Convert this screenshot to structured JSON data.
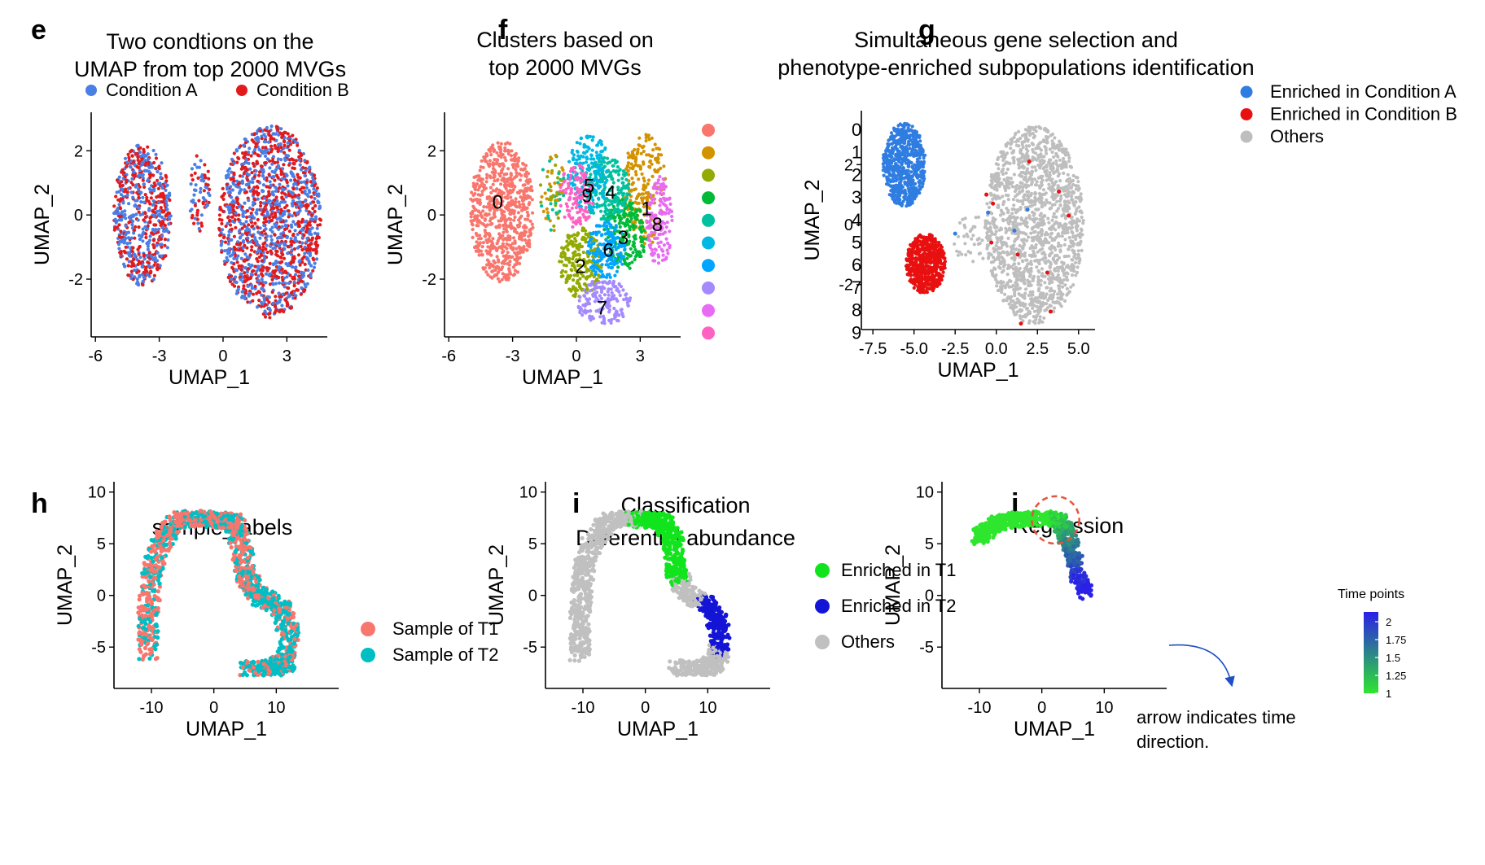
{
  "chart_data": [
    {
      "panel": "e",
      "type": "scatter",
      "title": [
        "Two condtions on the",
        "UMAP from top 2000 MVGs"
      ],
      "xlabel": "UMAP_1",
      "ylabel": "UMAP_2",
      "xlim": [
        -6.2,
        4.9
      ],
      "ylim": [
        -3.8,
        3.2
      ],
      "xticks": [
        -6,
        -3,
        0,
        3
      ],
      "xtick_labels": [
        "-6",
        "-3",
        "0",
        "3"
      ],
      "yticks": [
        -2,
        0,
        2
      ],
      "ytick_labels": [
        "-2",
        "0",
        "2"
      ],
      "legend": {
        "position": "top",
        "entries": [
          {
            "label": "Condition A",
            "color": "#4a7fe6"
          },
          {
            "label": "Condition B",
            "color": "#e31a1c"
          }
        ]
      },
      "clusters": [
        {
          "cx": -3.8,
          "cy": 0.0,
          "rx": 1.35,
          "ry": 2.2,
          "n": 650,
          "colors": [
            "#4a7fe6",
            "#e31a1c"
          ]
        },
        {
          "cx": 2.2,
          "cy": -0.2,
          "rx": 2.4,
          "ry": 3.0,
          "n": 1500,
          "colors": [
            "#4a7fe6",
            "#e31a1c"
          ]
        },
        {
          "cx": -1.1,
          "cy": 0.7,
          "rx": 0.5,
          "ry": 1.2,
          "n": 70,
          "colors": [
            "#4a7fe6",
            "#e31a1c"
          ]
        }
      ]
    },
    {
      "panel": "f",
      "type": "scatter",
      "title": [
        "Clusters based on",
        "top 2000 MVGs"
      ],
      "xlabel": "UMAP_1",
      "ylabel": "UMAP_2",
      "xlim": [
        -6.2,
        4.9
      ],
      "ylim": [
        -3.8,
        3.2
      ],
      "xticks": [
        -6,
        -3,
        0,
        3
      ],
      "xtick_labels": [
        "-6",
        "-3",
        "0",
        "3"
      ],
      "yticks": [
        -2,
        0,
        2
      ],
      "ytick_labels": [
        "-2",
        "0",
        "2"
      ],
      "legend": {
        "position": "right",
        "entries": [
          {
            "label": "0",
            "color": "#f8766d"
          },
          {
            "label": "1",
            "color": "#d39200"
          },
          {
            "label": "2",
            "color": "#93aa00"
          },
          {
            "label": "3",
            "color": "#00ba38"
          },
          {
            "label": "4",
            "color": "#00c19f"
          },
          {
            "label": "5",
            "color": "#00b9e3"
          },
          {
            "label": "6",
            "color": "#00a5ff"
          },
          {
            "label": "7",
            "color": "#a58aff"
          },
          {
            "label": "8",
            "color": "#e76bf3"
          },
          {
            "label": "9",
            "color": "#ff61c3"
          }
        ]
      },
      "annotations": [
        {
          "text": "0",
          "x": -3.7,
          "y": 0.4
        },
        {
          "text": "5",
          "x": 0.6,
          "y": 0.9
        },
        {
          "text": "9",
          "x": 0.5,
          "y": 0.6
        },
        {
          "text": "4",
          "x": 1.6,
          "y": 0.7
        },
        {
          "text": "1",
          "x": 3.3,
          "y": 0.2
        },
        {
          "text": "8",
          "x": 3.8,
          "y": -0.3
        },
        {
          "text": "3",
          "x": 2.2,
          "y": -0.7
        },
        {
          "text": "6",
          "x": 1.5,
          "y": -1.1
        },
        {
          "text": "2",
          "x": 0.2,
          "y": -1.6
        },
        {
          "text": "7",
          "x": 1.2,
          "y": -2.9
        }
      ],
      "clusters": [
        {
          "cx": -3.5,
          "cy": 0.1,
          "rx": 1.5,
          "ry": 2.2,
          "n": 700,
          "colors": [
            "#f8766d"
          ]
        },
        {
          "cx": 3.2,
          "cy": 0.8,
          "rx": 1.0,
          "ry": 1.8,
          "n": 220,
          "colors": [
            "#d39200"
          ]
        },
        {
          "cx": 0.2,
          "cy": -1.5,
          "rx": 1.0,
          "ry": 1.1,
          "n": 220,
          "colors": [
            "#93aa00"
          ]
        },
        {
          "cx": 2.3,
          "cy": -0.6,
          "rx": 1.0,
          "ry": 1.1,
          "n": 200,
          "colors": [
            "#00ba38"
          ]
        },
        {
          "cx": 1.4,
          "cy": 0.8,
          "rx": 1.1,
          "ry": 1.0,
          "n": 200,
          "colors": [
            "#00c19f"
          ]
        },
        {
          "cx": 0.6,
          "cy": 1.3,
          "rx": 1.0,
          "ry": 1.2,
          "n": 180,
          "colors": [
            "#00b9e3"
          ]
        },
        {
          "cx": 1.4,
          "cy": -1.1,
          "rx": 0.9,
          "ry": 0.9,
          "n": 160,
          "colors": [
            "#00a5ff"
          ]
        },
        {
          "cx": 1.3,
          "cy": -2.7,
          "rx": 1.3,
          "ry": 0.7,
          "n": 160,
          "colors": [
            "#a58aff"
          ]
        },
        {
          "cx": 3.9,
          "cy": -0.2,
          "rx": 0.6,
          "ry": 1.4,
          "n": 140,
          "colors": [
            "#e76bf3"
          ]
        },
        {
          "cx": 0.0,
          "cy": 0.6,
          "rx": 0.8,
          "ry": 1.0,
          "n": 120,
          "colors": [
            "#ff61c3"
          ]
        },
        {
          "cx": -1.1,
          "cy": 0.7,
          "rx": 0.6,
          "ry": 1.2,
          "n": 70,
          "colors": [
            "#d39200",
            "#93aa00",
            "#00c19f"
          ]
        }
      ]
    },
    {
      "panel": "g",
      "type": "scatter",
      "title": [
        "Simultaneous gene selection and",
        "phenotype-enriched subpopulations identification"
      ],
      "xlabel": "UMAP_1",
      "ylabel": "UMAP_2",
      "xlim": [
        -8.2,
        6.0
      ],
      "ylim": [
        -3.5,
        3.8
      ],
      "xticks": [
        -7.5,
        -5.0,
        -2.5,
        0.0,
        2.5,
        5.0
      ],
      "xtick_labels": [
        "-7.5",
        "-5.0",
        "-2.5",
        "0.0",
        "2.5",
        "5.0"
      ],
      "yticks": [
        -2,
        0,
        2
      ],
      "ytick_labels": [
        "-2",
        "0",
        "2"
      ],
      "legend": {
        "position": "top-right",
        "entries": [
          {
            "label": "Enriched in Condition A",
            "color": "#2f7de1"
          },
          {
            "label": "Enriched in Condition B",
            "color": "#e81010"
          },
          {
            "label": "Others",
            "color": "#bebebe"
          }
        ]
      },
      "clusters": [
        {
          "cx": -5.6,
          "cy": 2.0,
          "rx": 1.3,
          "ry": 1.4,
          "n": 650,
          "colors": [
            "#2f7de1"
          ]
        },
        {
          "cx": -4.3,
          "cy": -1.3,
          "rx": 1.2,
          "ry": 1.0,
          "n": 550,
          "colors": [
            "#e81010"
          ]
        },
        {
          "cx": 2.3,
          "cy": 0.0,
          "rx": 3.0,
          "ry": 3.3,
          "n": 1500,
          "colors": [
            "#bebebe"
          ]
        },
        {
          "cx": -1.5,
          "cy": -0.5,
          "rx": 1.2,
          "ry": 0.8,
          "n": 40,
          "colors": [
            "#bebebe"
          ]
        }
      ],
      "highlight_points": [
        {
          "x": 2.0,
          "y": 2.1,
          "color": "#e81010"
        },
        {
          "x": 3.8,
          "y": 1.1,
          "color": "#e81010"
        },
        {
          "x": 4.4,
          "y": 0.3,
          "color": "#e81010"
        },
        {
          "x": 1.3,
          "y": -1.0,
          "color": "#e81010"
        },
        {
          "x": 3.1,
          "y": -1.6,
          "color": "#e81010"
        },
        {
          "x": 3.3,
          "y": -2.9,
          "color": "#e81010"
        },
        {
          "x": -0.3,
          "y": -0.6,
          "color": "#e81010"
        },
        {
          "x": -0.2,
          "y": 0.7,
          "color": "#e81010"
        },
        {
          "x": 1.5,
          "y": -3.3,
          "color": "#e81010"
        },
        {
          "x": -0.6,
          "y": 1.0,
          "color": "#e81010"
        },
        {
          "x": 1.9,
          "y": 0.5,
          "color": "#2f7de1"
        },
        {
          "x": 1.1,
          "y": -0.2,
          "color": "#2f7de1"
        },
        {
          "x": -0.5,
          "y": 0.4,
          "color": "#2f7de1"
        },
        {
          "x": -2.5,
          "y": -0.3,
          "color": "#2f7de1"
        }
      ]
    },
    {
      "panel": "h",
      "type": "scatter",
      "title": [
        "sample_labels"
      ],
      "xlabel": "UMAP_1",
      "ylabel": "UMAP_2",
      "xlim": [
        -16,
        20
      ],
      "ylim": [
        -9,
        11
      ],
      "xticks": [
        -10,
        0,
        10
      ],
      "xtick_labels": [
        "-10",
        "0",
        "10"
      ],
      "yticks": [
        -5,
        0,
        5,
        10
      ],
      "ytick_labels": [
        "-5",
        "0",
        "5",
        "10"
      ],
      "legend": {
        "position": "right",
        "entries": [
          {
            "label": "Sample of T1",
            "color": "#f8766d"
          },
          {
            "label": "Sample of T2",
            "color": "#00bfc4"
          }
        ]
      },
      "curve": [
        [
          -10.5,
          -5.8
        ],
        [
          -10.5,
          -2
        ],
        [
          -10,
          2
        ],
        [
          -8.5,
          5
        ],
        [
          -6,
          7.2
        ],
        [
          -3,
          7.5
        ],
        [
          0,
          7.3
        ],
        [
          3,
          7.2
        ],
        [
          4.5,
          5
        ],
        [
          5,
          2
        ],
        [
          7,
          0
        ],
        [
          10.5,
          -1
        ],
        [
          12,
          -3.5
        ],
        [
          11.5,
          -6.5
        ],
        [
          10,
          -7
        ],
        [
          5,
          -7
        ]
      ],
      "n": 1600,
      "color_switch_index": 9,
      "mix_ratio": 0.4
    },
    {
      "panel": "i",
      "type": "scatter",
      "title": [
        "Classification",
        "Differential abundance"
      ],
      "xlabel": "UMAP_1",
      "ylabel": "UMAP_2",
      "xlim": [
        -16,
        20
      ],
      "ylim": [
        -9,
        11
      ],
      "xticks": [
        -10,
        0,
        10
      ],
      "xtick_labels": [
        "-10",
        "0",
        "10"
      ],
      "yticks": [
        -5,
        0,
        5,
        10
      ],
      "ytick_labels": [
        "-5",
        "0",
        "5",
        "10"
      ],
      "legend": {
        "position": "top-right",
        "entries": [
          {
            "label": "Enriched in T1",
            "color": "#11e41c"
          },
          {
            "label": "Enriched in T2",
            "color": "#1414d6"
          },
          {
            "label": "Others",
            "color": "#c0c0c0"
          }
        ]
      },
      "n": 1600,
      "segments": [
        {
          "from": 0,
          "to": 0.36,
          "color": "#c0c0c0"
        },
        {
          "from": 0.36,
          "to": 0.62,
          "color": "#11e41c"
        },
        {
          "from": 0.62,
          "to": 0.7,
          "color": "#c0c0c0"
        },
        {
          "from": 0.7,
          "to": 0.84,
          "color": "#1414d6"
        },
        {
          "from": 0.84,
          "to": 1.0,
          "color": "#c0c0c0"
        }
      ]
    },
    {
      "panel": "j",
      "type": "scatter",
      "title": [
        "Regression"
      ],
      "xlabel": "UMAP_1",
      "ylabel": "UMAP_2",
      "xlim": [
        -16,
        20
      ],
      "ylim": [
        -9,
        11
      ],
      "xticks": [
        -10,
        0,
        10
      ],
      "xtick_labels": [
        "-10",
        "0",
        "10"
      ],
      "yticks": [
        -5,
        0,
        5,
        10
      ],
      "ytick_labels": [
        "-5",
        "0",
        "5",
        "10"
      ],
      "colorbar": {
        "title": "Time points",
        "ticks": [
          "2",
          "1.75",
          "1.5",
          "1.25",
          "1"
        ],
        "low": "#2ee62e",
        "high": "#2a20e8"
      },
      "curve": [
        [
          -10,
          5.6
        ],
        [
          -8,
          6.8
        ],
        [
          -5,
          7.3
        ],
        [
          -2,
          7.4
        ],
        [
          1,
          7.5
        ],
        [
          3,
          7.2
        ],
        [
          4.5,
          5
        ],
        [
          5.5,
          2.5
        ],
        [
          7,
          0.3
        ]
      ],
      "n": 900,
      "annotation": [
        "arrow indicates time",
        "direction."
      ],
      "circle": {
        "x": 2.2,
        "y": 7.3,
        "r": 3.8
      }
    }
  ],
  "panel_labels": [
    "e",
    "f",
    "g",
    "h",
    "i",
    "j"
  ]
}
